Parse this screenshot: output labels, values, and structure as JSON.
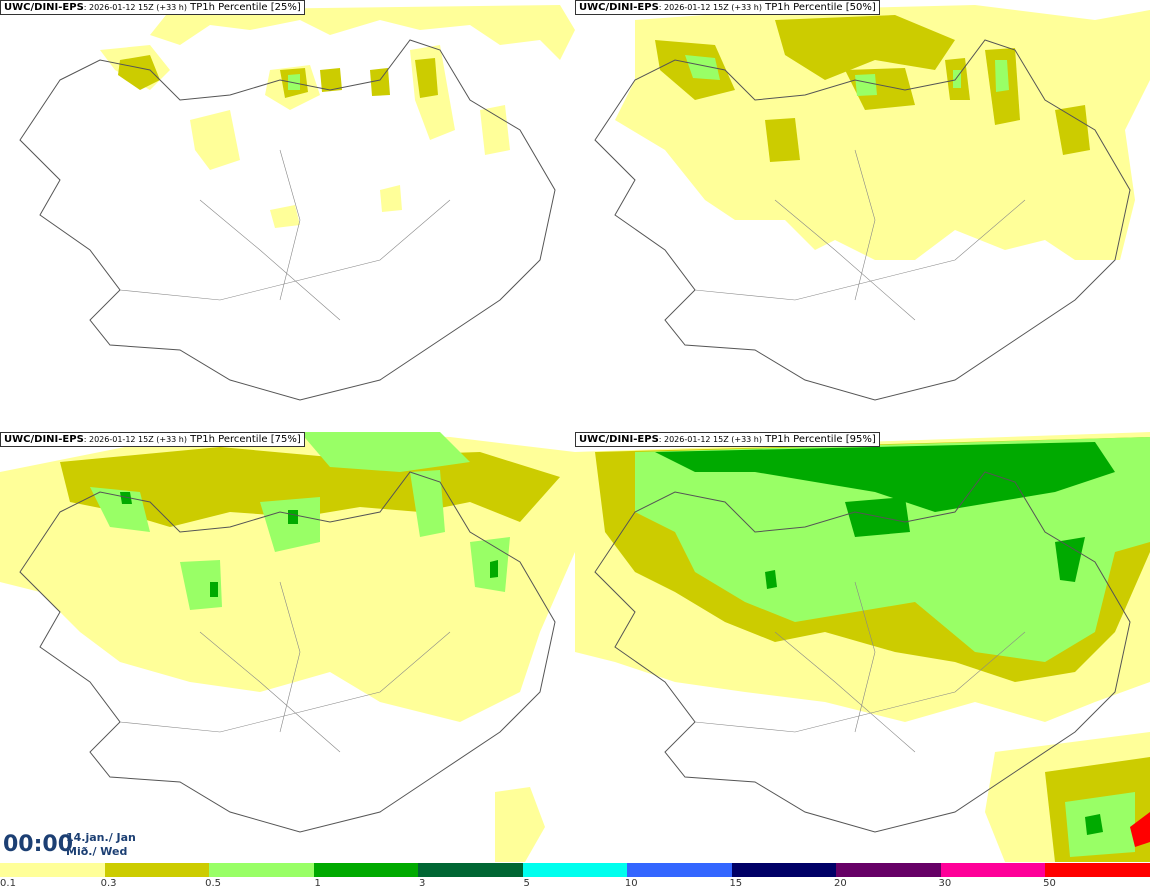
{
  "panels": [
    {
      "model": "UWC/DINI-EPS",
      "run": ": 2026-01-12 15Z (+33 h)",
      "field": " TP1h Percentile [25%]"
    },
    {
      "model": "UWC/DINI-EPS",
      "run": ": 2026-01-12 15Z (+33 h)",
      "field": " TP1h Percentile [50%]"
    },
    {
      "model": "UWC/DINI-EPS",
      "run": ": 2026-01-12 15Z (+33 h)",
      "field": " TP1h Percentile [75%]"
    },
    {
      "model": "UWC/DINI-EPS",
      "run": ": 2026-01-12 15Z (+33 h)",
      "field": " TP1h Percentile [95%]"
    }
  ],
  "time": {
    "clock": "00:00",
    "date_line1": "14.jan./ Jan",
    "date_line2": "Mið./ Wed"
  },
  "legend": {
    "labels": [
      "0.1",
      "0.3",
      "0.5",
      "1",
      "3",
      "5",
      "10",
      "15",
      "20",
      "30",
      "50"
    ],
    "colors": [
      "#ffff99",
      "#cccc00",
      "#99ff66",
      "#00aa00",
      "#006633",
      "#00ffee",
      "#3366ff",
      "#000066",
      "#660066",
      "#ff0099",
      "#ff0000"
    ]
  },
  "colors": {
    "coast": "#555555",
    "land": "#ffffff"
  }
}
